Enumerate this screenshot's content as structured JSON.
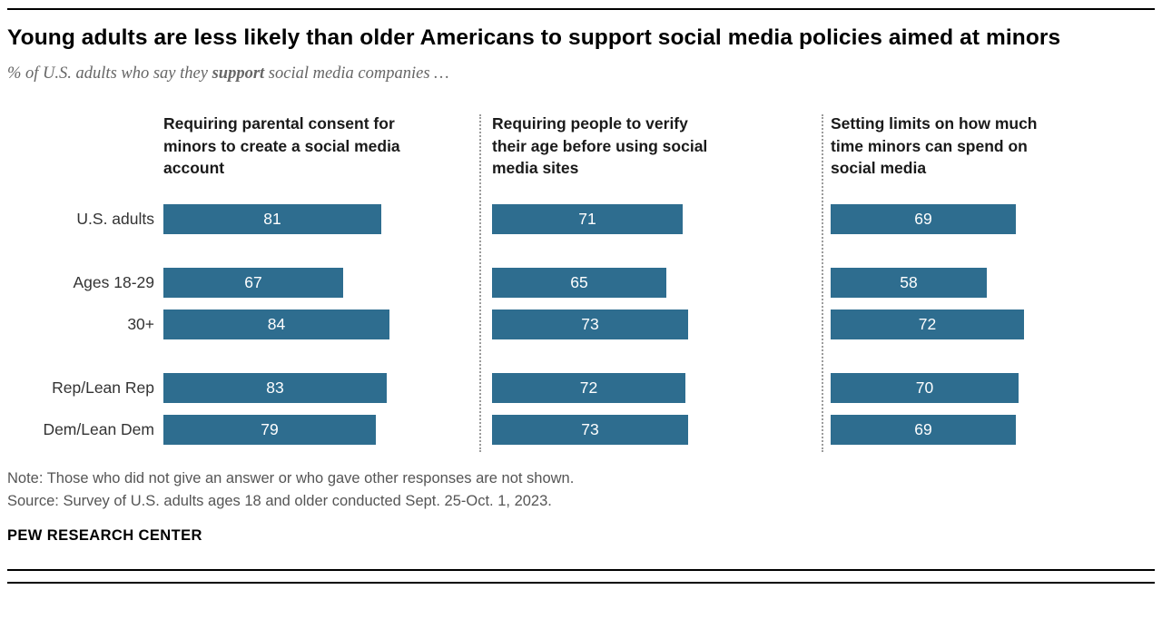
{
  "header": {
    "title": "Young adults are less likely than older Americans to support social media policies aimed at minors",
    "subtitle_prefix": "% of U.S. adults who say they ",
    "subtitle_bold": "support",
    "subtitle_suffix": " social media companies …"
  },
  "chart_data": {
    "type": "bar",
    "orientation": "horizontal",
    "bar_color": "#2E6D8F",
    "value_label_style": "inside-white-centered",
    "xlim": [
      0,
      100
    ],
    "grid": false,
    "categories": [
      "U.S. adults",
      "Ages 18-29",
      "30+",
      "Rep/Lean Rep",
      "Dem/Lean Dem"
    ],
    "group_breaks_after": [
      0,
      2
    ],
    "series": [
      {
        "name": "Requiring parental consent for minors to create a social media account",
        "values": [
          81,
          67,
          84,
          83,
          79
        ]
      },
      {
        "name": "Requiring people to verify their age before using social media sites",
        "values": [
          71,
          65,
          73,
          72,
          73
        ]
      },
      {
        "name": "Setting limits on how much time minors can spend on social media",
        "values": [
          69,
          58,
          72,
          70,
          69
        ]
      }
    ]
  },
  "footer": {
    "note": "Note: Those who did not give an answer or who gave other responses are not shown.",
    "source": "Source: Survey of U.S. adults ages 18 and older conducted Sept. 25-Oct. 1, 2023.",
    "brand": "PEW RESEARCH CENTER"
  }
}
